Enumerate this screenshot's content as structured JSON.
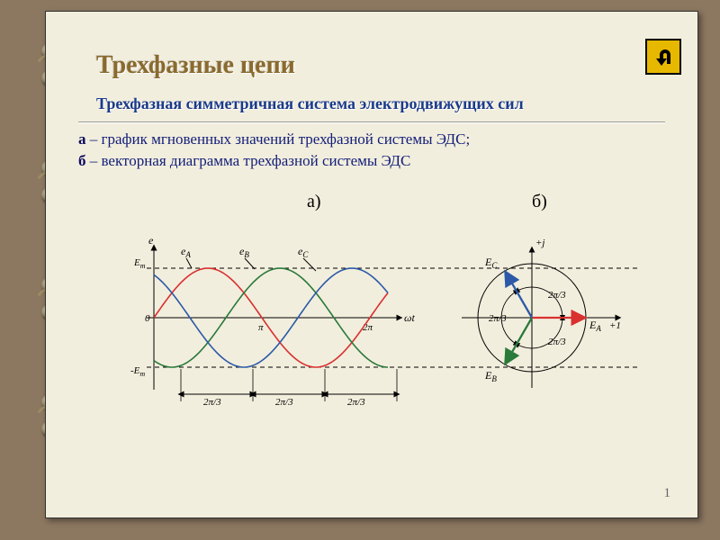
{
  "title": "Трехфазные цепи",
  "subtitle": "Трехфазная симметричная система электродвижущих сил",
  "line_a_bold": "а",
  "line_a_text": " – график мгновенных значений трехфазной системы ЭДС;",
  "line_b_bold": "б",
  "line_b_text": " – векторная диаграмма трехфазной системы ЭДС",
  "fig_a": "а)",
  "fig_b": "б)",
  "page": "1",
  "wave_chart": {
    "type": "line",
    "phases": [
      {
        "name": "eA",
        "color": "#d93030",
        "phase_deg": 0
      },
      {
        "name": "eB",
        "color": "#2a7a3a",
        "phase_deg": 120
      },
      {
        "name": "eC",
        "color": "#2c5aa8",
        "phase_deg": 240
      }
    ],
    "amplitude_label_pos": "Em",
    "amplitude_label_neg": "-Em",
    "y_axis_label": "e",
    "x_axis_label": "ωt",
    "x_ticks": [
      "0",
      "π",
      "2π"
    ],
    "interval_label": "2π/3",
    "axis_color": "#000000",
    "guide_dash": "5,4",
    "line_width": 1.6
  },
  "phasor_chart": {
    "type": "phasor",
    "vectors": [
      {
        "name": "EA",
        "label": "E_A",
        "color": "#d93030",
        "angle_deg": 0
      },
      {
        "name": "EB",
        "label": "E_B",
        "color": "#2a7a3a",
        "angle_deg": -120
      },
      {
        "name": "EC",
        "label": "E_C",
        "color": "#2c5aa8",
        "angle_deg": 120
      }
    ],
    "radius": 60,
    "arc_label": "2π/3",
    "axis_pos_real": "+1",
    "axis_pos_imag": "+j",
    "axis_color": "#000000"
  },
  "colors": {
    "background": "#f2eedd",
    "frame": "#8c7760",
    "title": "#8a6a2e",
    "subtitle": "#1a3a8a",
    "body_text": "#14207a"
  }
}
